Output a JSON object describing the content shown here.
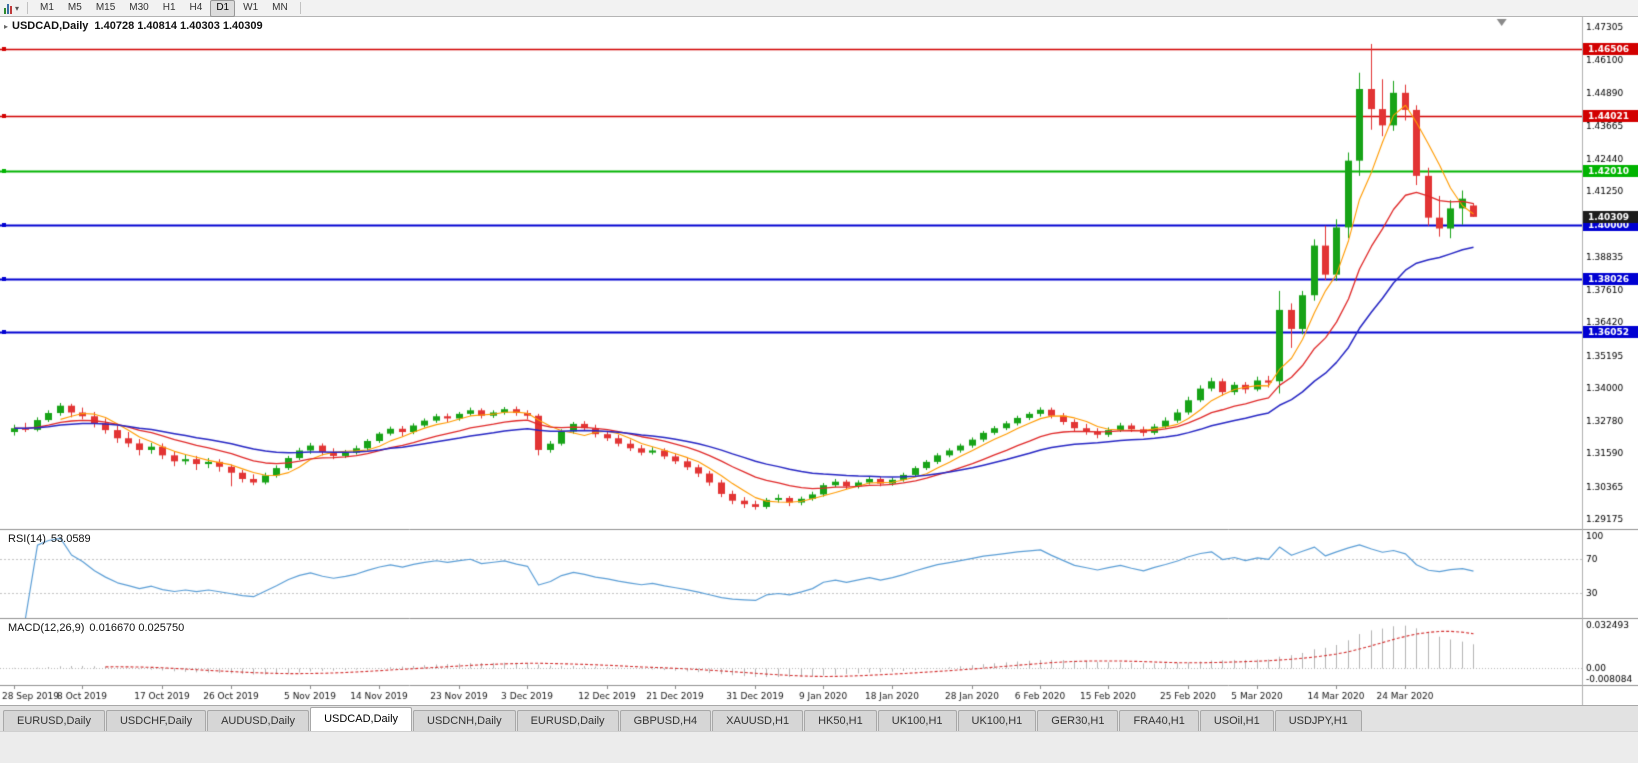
{
  "toolbar": {
    "timeframes": [
      "M1",
      "M5",
      "M15",
      "M30",
      "H1",
      "H4",
      "D1",
      "W1",
      "MN"
    ],
    "active_timeframe": "D1"
  },
  "icons": {
    "one_click": "▸",
    "chart_dropdown": "▾"
  },
  "header": {
    "symbol_period": "USDCAD,Daily",
    "ohlc": "1.40728 1.40814 1.40303 1.40309"
  },
  "rsi_panel": {
    "label": "RSI(14)",
    "value": "53.0589"
  },
  "macd_panel": {
    "label": "MACD(12,26,9)",
    "value": "0.016670 0.025750"
  },
  "colors": {
    "up": "#17a317",
    "down": "#e23434",
    "ma_fast": "#ff9b00",
    "ma_mid": "#e02828",
    "ma_slow": "#2626c4",
    "rsi_line": "#5b9ed6",
    "macd_hist": "#b4b4b4",
    "macd_signal": "#d33030",
    "badge_current": "#1c1c1c",
    "axis_text": "#000000",
    "separator": "#909090"
  },
  "tabbar": {
    "active_index": 3,
    "tabs": [
      "EURUSD,Daily",
      "USDCHF,Daily",
      "AUDUSD,Daily",
      "USDCAD,Daily",
      "USDCNH,Daily",
      "EURUSD,Daily",
      "GBPUSD,H4",
      "XAUUSD,H1",
      "HK50,H1",
      "UK100,H1",
      "UK100,H1",
      "GER30,H1",
      "FRA40,H1",
      "USOil,H1",
      "USDJPY,H1"
    ]
  },
  "chart_data": {
    "type": "candlestick",
    "title": "USDCAD,Daily",
    "current_bar": {
      "open": 1.40728,
      "high": 1.40814,
      "low": 1.40303,
      "close": 1.40309
    },
    "y_axis_labels": [
      "1.47305",
      "1.46100",
      "1.44890",
      "1.43665",
      "1.42440",
      "1.41250",
      "1.40025",
      "1.38835",
      "1.37610",
      "1.36420",
      "1.35195",
      "1.34000",
      "1.32780",
      "1.31590",
      "1.30365",
      "1.29175"
    ],
    "x_axis_labels": [
      {
        "bar": 0,
        "text": "28 Sep 2019"
      },
      {
        "bar": 6,
        "text": "8 Oct 2019"
      },
      {
        "bar": 13,
        "text": "17 Oct 2019"
      },
      {
        "bar": 19,
        "text": "26 Oct 2019"
      },
      {
        "bar": 26,
        "text": "5 Nov 2019"
      },
      {
        "bar": 32,
        "text": "14 Nov 2019"
      },
      {
        "bar": 39,
        "text": "23 Nov 2019"
      },
      {
        "bar": 45,
        "text": "3 Dec 2019"
      },
      {
        "bar": 52,
        "text": "12 Dec 2019"
      },
      {
        "bar": 58,
        "text": "21 Dec 2019"
      },
      {
        "bar": 65,
        "text": "31 Dec 2019"
      },
      {
        "bar": 71,
        "text": "9 Jan 2020"
      },
      {
        "bar": 77,
        "text": "18 Jan 2020"
      },
      {
        "bar": 84,
        "text": "28 Jan 2020"
      },
      {
        "bar": 90,
        "text": "6 Feb 2020"
      },
      {
        "bar": 96,
        "text": "15 Feb 2020"
      },
      {
        "bar": 103,
        "text": "25 Feb 2020"
      },
      {
        "bar": 109,
        "text": "5 Mar 2020"
      },
      {
        "bar": 116,
        "text": "14 Mar 2020"
      },
      {
        "bar": 122,
        "text": "24 Mar 2020"
      }
    ],
    "levels": [
      {
        "price": 1.46506,
        "label": "1.46506",
        "color": "#d20000",
        "width": 1.4
      },
      {
        "price": 1.44021,
        "label": "1.44021",
        "color": "#d20000",
        "width": 1.4
      },
      {
        "price": 1.4201,
        "label": "1.42010",
        "color": "#00b400",
        "width": 2
      },
      {
        "price": 1.4,
        "label": "1.40000",
        "color": "#0000d2",
        "width": 2
      },
      {
        "price": 1.38026,
        "label": "1.38026",
        "color": "#0000d2",
        "width": 2
      },
      {
        "price": 1.36052,
        "label": "1.36052",
        "color": "#0000d2",
        "width": 2
      }
    ],
    "current_price": {
      "value": 1.40309,
      "label": "1.40309"
    },
    "rsi": {
      "period": 14,
      "current": 53.0589,
      "scale_labels": [
        {
          "value": 100,
          "text": "100"
        },
        {
          "value": 70,
          "text": "70"
        },
        {
          "value": 30,
          "text": "30"
        }
      ],
      "dashed_levels": [
        70,
        30
      ]
    },
    "macd": {
      "fast": 12,
      "slow": 26,
      "signal": 9,
      "current_macd": 0.01667,
      "current_signal": 0.02575,
      "scale_labels": [
        {
          "value": 0.032493,
          "text": "0.032493"
        },
        {
          "value": 0,
          "text": "0.00"
        },
        {
          "value": -0.008084,
          "text": "-0.008084"
        }
      ]
    },
    "candles": [
      [
        1.3238,
        1.3265,
        1.3225,
        1.3252
      ],
      [
        1.3252,
        1.3272,
        1.3238,
        1.3246
      ],
      [
        1.3246,
        1.3292,
        1.324,
        1.3282
      ],
      [
        1.3282,
        1.3318,
        1.3275,
        1.3308
      ],
      [
        1.3308,
        1.3345,
        1.3298,
        1.3335
      ],
      [
        1.3335,
        1.3342,
        1.3292,
        1.331
      ],
      [
        1.331,
        1.3328,
        1.3285,
        1.3296
      ],
      [
        1.3296,
        1.3312,
        1.3255,
        1.327
      ],
      [
        1.327,
        1.3288,
        1.3232,
        1.3245
      ],
      [
        1.3245,
        1.3262,
        1.3198,
        1.3215
      ],
      [
        1.3215,
        1.3238,
        1.3182,
        1.3196
      ],
      [
        1.3196,
        1.3212,
        1.3152,
        1.3172
      ],
      [
        1.3172,
        1.3198,
        1.3158,
        1.3184
      ],
      [
        1.3184,
        1.3196,
        1.3138,
        1.3152
      ],
      [
        1.3152,
        1.3168,
        1.3112,
        1.313
      ],
      [
        1.313,
        1.3155,
        1.3118,
        1.3138
      ],
      [
        1.3138,
        1.315,
        1.3098,
        1.312
      ],
      [
        1.312,
        1.3142,
        1.3105,
        1.3128
      ],
      [
        1.3128,
        1.3138,
        1.3092,
        1.311
      ],
      [
        1.311,
        1.3118,
        1.3038,
        1.3088
      ],
      [
        1.3088,
        1.3098,
        1.3052,
        1.3065
      ],
      [
        1.3065,
        1.3082,
        1.3042,
        1.3052
      ],
      [
        1.3052,
        1.3088,
        1.3045,
        1.3078
      ],
      [
        1.3078,
        1.3115,
        1.307,
        1.3105
      ],
      [
        1.3105,
        1.315,
        1.3098,
        1.3142
      ],
      [
        1.3142,
        1.318,
        1.3135,
        1.317
      ],
      [
        1.317,
        1.3198,
        1.3158,
        1.3188
      ],
      [
        1.3188,
        1.3196,
        1.3152,
        1.3165
      ],
      [
        1.3165,
        1.3178,
        1.3138,
        1.315
      ],
      [
        1.315,
        1.3172,
        1.3142,
        1.3162
      ],
      [
        1.3162,
        1.3188,
        1.3155,
        1.3178
      ],
      [
        1.3178,
        1.3212,
        1.317,
        1.3205
      ],
      [
        1.3205,
        1.3238,
        1.3198,
        1.3232
      ],
      [
        1.3232,
        1.3258,
        1.3225,
        1.325
      ],
      [
        1.325,
        1.326,
        1.3222,
        1.3238
      ],
      [
        1.3238,
        1.327,
        1.323,
        1.3262
      ],
      [
        1.3262,
        1.3288,
        1.3255,
        1.328
      ],
      [
        1.328,
        1.3305,
        1.3272,
        1.3296
      ],
      [
        1.3296,
        1.3306,
        1.3275,
        1.3288
      ],
      [
        1.3288,
        1.3312,
        1.328,
        1.3305
      ],
      [
        1.3305,
        1.3328,
        1.3298,
        1.3318
      ],
      [
        1.3318,
        1.3325,
        1.3288,
        1.3298
      ],
      [
        1.3298,
        1.3318,
        1.329,
        1.331
      ],
      [
        1.331,
        1.333,
        1.3302,
        1.3322
      ],
      [
        1.3322,
        1.3332,
        1.3298,
        1.3308
      ],
      [
        1.3308,
        1.3318,
        1.3285,
        1.3298
      ],
      [
        1.3298,
        1.3305,
        1.3152,
        1.3172
      ],
      [
        1.3172,
        1.3205,
        1.3162,
        1.3195
      ],
      [
        1.3195,
        1.3248,
        1.3188,
        1.324
      ],
      [
        1.324,
        1.3275,
        1.3232,
        1.3268
      ],
      [
        1.3268,
        1.3278,
        1.3242,
        1.3252
      ],
      [
        1.3252,
        1.3265,
        1.3218,
        1.323
      ],
      [
        1.323,
        1.3242,
        1.3205,
        1.3215
      ],
      [
        1.3215,
        1.3228,
        1.3185,
        1.3195
      ],
      [
        1.3195,
        1.321,
        1.3168,
        1.3178
      ],
      [
        1.3178,
        1.319,
        1.3152,
        1.3162
      ],
      [
        1.3162,
        1.3182,
        1.3155,
        1.317
      ],
      [
        1.317,
        1.3178,
        1.3138,
        1.3148
      ],
      [
        1.3148,
        1.3158,
        1.312,
        1.313
      ],
      [
        1.313,
        1.3142,
        1.3098,
        1.3108
      ],
      [
        1.3108,
        1.3118,
        1.3072,
        1.3085
      ],
      [
        1.3085,
        1.3095,
        1.304,
        1.3052
      ],
      [
        1.3052,
        1.3062,
        1.2998,
        1.301
      ],
      [
        1.301,
        1.3022,
        1.2972,
        1.2985
      ],
      [
        1.2985,
        1.2998,
        1.2958,
        1.2972
      ],
      [
        1.2972,
        1.2985,
        1.2952,
        1.2962
      ],
      [
        1.2962,
        1.2995,
        1.2955,
        1.2988
      ],
      [
        1.2988,
        1.3008,
        1.2978,
        1.2995
      ],
      [
        1.2995,
        1.3002,
        1.2965,
        1.2978
      ],
      [
        1.2978,
        1.3,
        1.2968,
        1.2992
      ],
      [
        1.2992,
        1.3018,
        1.2985,
        1.3008
      ],
      [
        1.3008,
        1.305,
        1.3,
        1.3042
      ],
      [
        1.3042,
        1.3065,
        1.3035,
        1.3055
      ],
      [
        1.3055,
        1.3062,
        1.3028,
        1.3038
      ],
      [
        1.3038,
        1.306,
        1.303,
        1.3052
      ],
      [
        1.3052,
        1.3075,
        1.3045,
        1.3065
      ],
      [
        1.3065,
        1.3072,
        1.3038,
        1.3048
      ],
      [
        1.3048,
        1.307,
        1.304,
        1.3062
      ],
      [
        1.3062,
        1.3088,
        1.3055,
        1.308
      ],
      [
        1.308,
        1.3112,
        1.3072,
        1.3105
      ],
      [
        1.3105,
        1.3135,
        1.3098,
        1.3128
      ],
      [
        1.3128,
        1.316,
        1.312,
        1.3152
      ],
      [
        1.3152,
        1.3178,
        1.3145,
        1.317
      ],
      [
        1.317,
        1.3195,
        1.3162,
        1.3188
      ],
      [
        1.3188,
        1.3218,
        1.318,
        1.321
      ],
      [
        1.321,
        1.3242,
        1.3202,
        1.3235
      ],
      [
        1.3235,
        1.326,
        1.3228,
        1.3252
      ],
      [
        1.3252,
        1.3278,
        1.3245,
        1.327
      ],
      [
        1.327,
        1.3298,
        1.3262,
        1.329
      ],
      [
        1.329,
        1.3312,
        1.3282,
        1.3305
      ],
      [
        1.3305,
        1.3329,
        1.3295,
        1.332
      ],
      [
        1.332,
        1.3328,
        1.3288,
        1.3298
      ],
      [
        1.3298,
        1.3308,
        1.3265,
        1.3275
      ],
      [
        1.3275,
        1.3285,
        1.324,
        1.3252
      ],
      [
        1.3252,
        1.3268,
        1.3228,
        1.324
      ],
      [
        1.324,
        1.3252,
        1.3215,
        1.3228
      ],
      [
        1.3228,
        1.3255,
        1.322,
        1.3245
      ],
      [
        1.3245,
        1.3272,
        1.3238,
        1.3262
      ],
      [
        1.3262,
        1.327,
        1.3238,
        1.3248
      ],
      [
        1.3248,
        1.3258,
        1.3222,
        1.3235
      ],
      [
        1.3235,
        1.3268,
        1.3228,
        1.3258
      ],
      [
        1.3258,
        1.3292,
        1.325,
        1.328
      ],
      [
        1.328,
        1.3322,
        1.3272,
        1.331
      ],
      [
        1.331,
        1.3368,
        1.3302,
        1.3355
      ],
      [
        1.3355,
        1.341,
        1.3348,
        1.3398
      ],
      [
        1.3398,
        1.3438,
        1.3388,
        1.3425
      ],
      [
        1.3425,
        1.3435,
        1.3372,
        1.3385
      ],
      [
        1.3385,
        1.3422,
        1.3375,
        1.3412
      ],
      [
        1.3412,
        1.3422,
        1.338,
        1.3395
      ],
      [
        1.3395,
        1.3442,
        1.3388,
        1.3428
      ],
      [
        1.3428,
        1.3445,
        1.3402,
        1.342
      ],
      [
        1.3425,
        1.3758,
        1.338,
        1.3688
      ],
      [
        1.3688,
        1.3712,
        1.3548,
        1.3618
      ],
      [
        1.3618,
        1.3758,
        1.3598,
        1.3742
      ],
      [
        1.3742,
        1.3948,
        1.3722,
        1.3925
      ],
      [
        1.3925,
        1.3998,
        1.3798,
        1.3818
      ],
      [
        1.3818,
        1.4022,
        1.3795,
        1.3992
      ],
      [
        1.3992,
        1.4268,
        1.3952,
        1.4238
      ],
      [
        1.4238,
        1.4562,
        1.4182,
        1.4502
      ],
      [
        1.4502,
        1.4668,
        1.4352,
        1.4428
      ],
      [
        1.4428,
        1.4538,
        1.4328,
        1.4368
      ],
      [
        1.4368,
        1.4532,
        1.4348,
        1.4488
      ],
      [
        1.4488,
        1.4518,
        1.4386,
        1.4425
      ],
      [
        1.4425,
        1.4442,
        1.4148,
        1.4182
      ],
      [
        1.4182,
        1.4212,
        1.3998,
        1.4028
      ],
      [
        1.4028,
        1.4108,
        1.3958,
        1.3988
      ],
      [
        1.3988,
        1.4092,
        1.3952,
        1.4062
      ],
      [
        1.4062,
        1.4128,
        1.4002,
        1.4098
      ],
      [
        1.40728,
        1.40814,
        1.40303,
        1.40309
      ]
    ]
  }
}
